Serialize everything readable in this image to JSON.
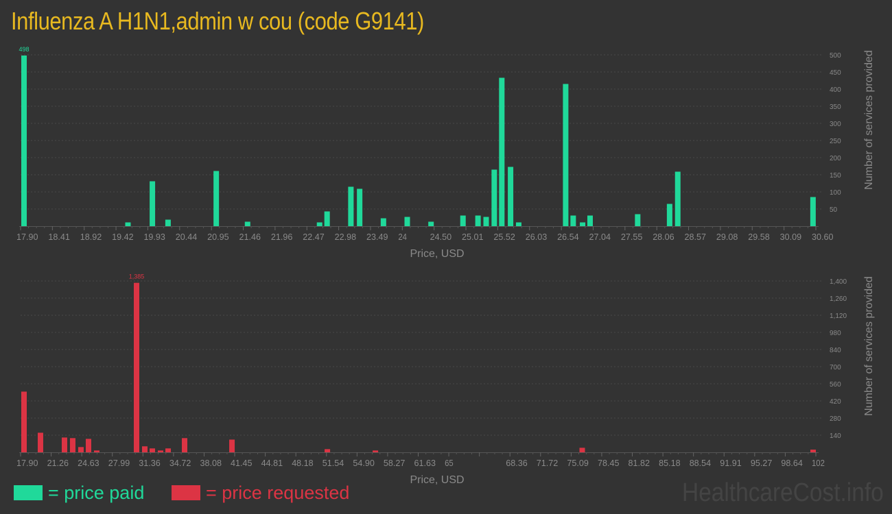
{
  "title": "Influenza A H1N1,admin w cou (code G9141)",
  "colors": {
    "background": "#333333",
    "paid": "#20d99a",
    "requested": "#dc3444",
    "title": "#e8b920"
  },
  "legend": {
    "paid_label": "= price paid",
    "requested_label": "= price requested"
  },
  "watermark": "HealthcareCost.info",
  "chart_data": [
    {
      "type": "bar",
      "series": [
        {
          "name": "price paid",
          "color": "#20d99a"
        }
      ],
      "xlabel": "Price, USD",
      "ylabel": "Number of services provided",
      "xlim": [
        17.9,
        30.6
      ],
      "ylim": [
        0,
        500
      ],
      "grid": true,
      "x_tick_labels": [
        "17.90",
        "18.41",
        "18.92",
        "19.42",
        "19.93",
        "20.44",
        "20.95",
        "21.46",
        "21.96",
        "22.47",
        "22.98",
        "23.49",
        "24",
        "24.50",
        "25.01",
        "25.52",
        "26.03",
        "26.54",
        "27.04",
        "27.55",
        "28.06",
        "28.57",
        "29.08",
        "29.58",
        "30.09",
        "30.60"
      ],
      "y_tick_labels": [
        "50",
        "100",
        "150",
        "200",
        "250",
        "300",
        "350",
        "400",
        "450",
        "500"
      ],
      "peak_label": "498",
      "bars": [
        {
          "x": 17.9,
          "y": 498
        },
        {
          "x": 19.56,
          "y": 11
        },
        {
          "x": 19.95,
          "y": 131
        },
        {
          "x": 20.2,
          "y": 19
        },
        {
          "x": 20.97,
          "y": 161
        },
        {
          "x": 21.47,
          "y": 13
        },
        {
          "x": 22.62,
          "y": 11
        },
        {
          "x": 22.74,
          "y": 43
        },
        {
          "x": 23.12,
          "y": 115
        },
        {
          "x": 23.26,
          "y": 109
        },
        {
          "x": 23.64,
          "y": 23
        },
        {
          "x": 24.02,
          "y": 27
        },
        {
          "x": 24.4,
          "y": 13
        },
        {
          "x": 24.91,
          "y": 31
        },
        {
          "x": 25.15,
          "y": 31
        },
        {
          "x": 25.28,
          "y": 27
        },
        {
          "x": 25.41,
          "y": 165
        },
        {
          "x": 25.53,
          "y": 433
        },
        {
          "x": 25.67,
          "y": 173
        },
        {
          "x": 25.8,
          "y": 11
        },
        {
          "x": 26.55,
          "y": 415
        },
        {
          "x": 26.67,
          "y": 31
        },
        {
          "x": 26.82,
          "y": 11
        },
        {
          "x": 26.94,
          "y": 31
        },
        {
          "x": 27.7,
          "y": 35
        },
        {
          "x": 28.21,
          "y": 65
        },
        {
          "x": 28.34,
          "y": 159
        },
        {
          "x": 30.5,
          "y": 85
        }
      ]
    },
    {
      "type": "bar",
      "series": [
        {
          "name": "price requested",
          "color": "#dc3444"
        }
      ],
      "xlabel": "Price, USD",
      "ylabel": "Number of services provided",
      "xlim": [
        17.9,
        102
      ],
      "ylim": [
        0,
        1400
      ],
      "grid": true,
      "x_tick_labels": [
        "17.90",
        "21.26",
        "24.63",
        "27.99",
        "31.36",
        "34.72",
        "38.08",
        "41.45",
        "44.81",
        "48.18",
        "51.54",
        "54.90",
        "58.27",
        "61.63",
        "65",
        "",
        "68.36",
        "71.72",
        "75.09",
        "78.45",
        "81.82",
        "85.18",
        "88.54",
        "91.91",
        "95.27",
        "98.64",
        "102"
      ],
      "y_tick_labels": [
        "140",
        "280",
        "420",
        "560",
        "700",
        "840",
        "980",
        "1,120",
        "1,260",
        "1,400"
      ],
      "peak_label": "1,385",
      "bars": [
        {
          "x": 17.9,
          "y": 496
        },
        {
          "x": 19.64,
          "y": 160
        },
        {
          "x": 22.18,
          "y": 121
        },
        {
          "x": 23.05,
          "y": 116
        },
        {
          "x": 23.92,
          "y": 43
        },
        {
          "x": 24.72,
          "y": 110
        },
        {
          "x": 25.59,
          "y": 15
        },
        {
          "x": 29.8,
          "y": 1385
        },
        {
          "x": 30.67,
          "y": 49
        },
        {
          "x": 31.47,
          "y": 32
        },
        {
          "x": 32.34,
          "y": 15
        },
        {
          "x": 33.14,
          "y": 32
        },
        {
          "x": 34.88,
          "y": 116
        },
        {
          "x": 39.89,
          "y": 104
        },
        {
          "x": 49.98,
          "y": 26
        },
        {
          "x": 55.06,
          "y": 15
        },
        {
          "x": 76.93,
          "y": 37
        },
        {
          "x": 101.35,
          "y": 22
        }
      ]
    }
  ]
}
